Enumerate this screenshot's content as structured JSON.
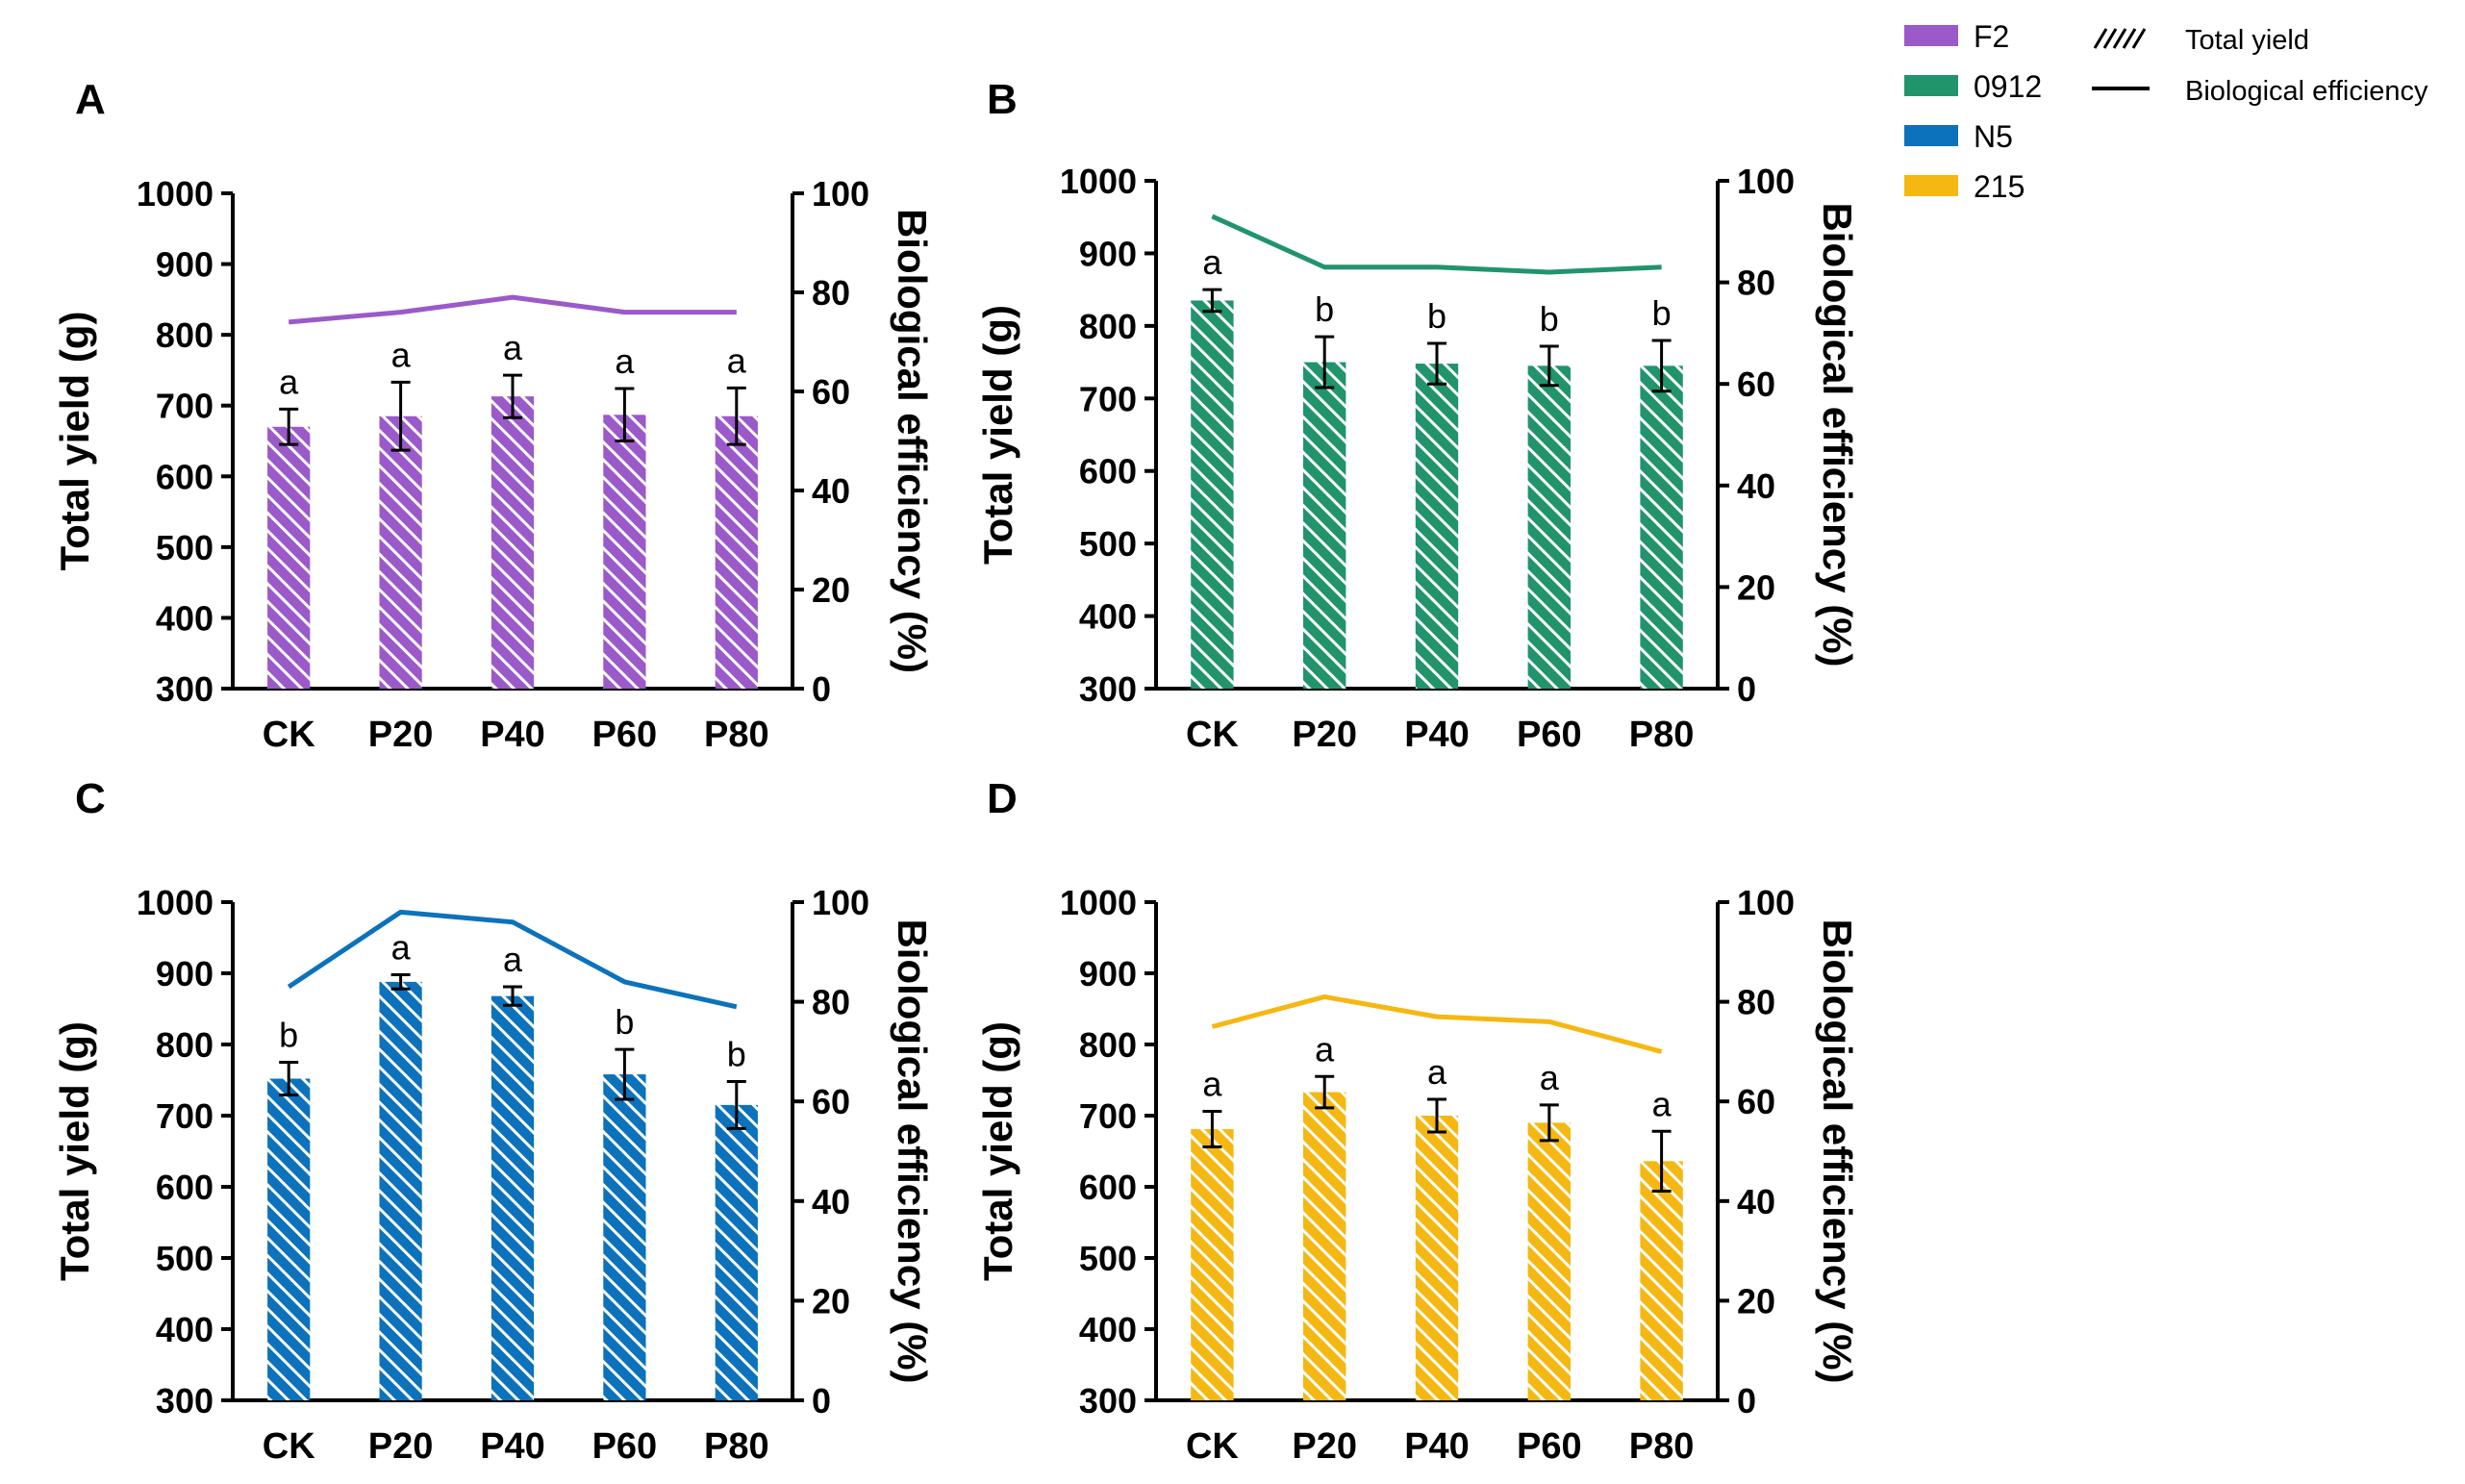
{
  "legend": {
    "strains": [
      {
        "label": "F2",
        "color": "#9b59c9"
      },
      {
        "label": "0912",
        "color": "#21946c"
      },
      {
        "label": "N5",
        "color": "#0c72bb"
      },
      {
        "label": "215",
        "color": "#f5b812"
      }
    ],
    "total_yield_label": "Total yield",
    "bio_eff_label": "Biological efficiency"
  },
  "chart_data": [
    {
      "panel": "A",
      "type": "bar",
      "strain": "F2",
      "color": "#9b59c9",
      "categories": [
        "CK",
        "P20",
        "P40",
        "P60",
        "P80"
      ],
      "ylabel": "Total yield (g)",
      "y2label": "Biological efficiency (%)",
      "ylim": [
        300,
        1000
      ],
      "yticks": [
        300,
        400,
        500,
        600,
        700,
        800,
        900,
        1000
      ],
      "y2lim": [
        0,
        100
      ],
      "y2ticks": [
        0,
        20,
        40,
        60,
        80,
        100
      ],
      "yield": [
        670,
        685,
        713,
        687,
        685
      ],
      "yield_err": [
        25,
        48,
        30,
        37,
        40
      ],
      "letters": [
        "a",
        "a",
        "a",
        "a",
        "a"
      ],
      "bio_efficiency": [
        74,
        76,
        79,
        76,
        76
      ]
    },
    {
      "panel": "B",
      "type": "bar",
      "strain": "0912",
      "color": "#21946c",
      "categories": [
        "CK",
        "P20",
        "P40",
        "P60",
        "P80"
      ],
      "ylabel": "Total yield (g)",
      "y2label": "Biological efficiency (%)",
      "ylim": [
        300,
        1000
      ],
      "yticks": [
        300,
        400,
        500,
        600,
        700,
        800,
        900,
        1000
      ],
      "y2lim": [
        0,
        100
      ],
      "y2ticks": [
        0,
        20,
        40,
        60,
        80,
        100
      ],
      "yield": [
        835,
        750,
        748,
        745,
        745
      ],
      "yield_err": [
        15,
        35,
        28,
        27,
        35
      ],
      "letters": [
        "a",
        "b",
        "b",
        "b",
        "b"
      ],
      "bio_efficiency": [
        93,
        83,
        83,
        82,
        83
      ]
    },
    {
      "panel": "C",
      "type": "bar",
      "strain": "N5",
      "color": "#0c72bb",
      "categories": [
        "CK",
        "P20",
        "P40",
        "P60",
        "P80"
      ],
      "ylabel": "Total yield (g)",
      "y2label": "Biological efficiency (%)",
      "ylim": [
        300,
        1000
      ],
      "yticks": [
        300,
        400,
        500,
        600,
        700,
        800,
        900,
        1000
      ],
      "y2lim": [
        0,
        100
      ],
      "y2ticks": [
        0,
        20,
        40,
        60,
        80,
        100
      ],
      "yield": [
        752,
        888,
        868,
        758,
        715
      ],
      "yield_err": [
        23,
        10,
        13,
        35,
        33
      ],
      "letters": [
        "b",
        "a",
        "a",
        "b",
        "b"
      ],
      "bio_efficiency": [
        83,
        98,
        96,
        84,
        79
      ]
    },
    {
      "panel": "D",
      "type": "bar",
      "strain": "215",
      "color": "#f5b812",
      "categories": [
        "CK",
        "P20",
        "P40",
        "P60",
        "P80"
      ],
      "ylabel": "Total yield (g)",
      "y2label": "Biological efficiency (%)",
      "ylim": [
        300,
        1000
      ],
      "yticks": [
        300,
        400,
        500,
        600,
        700,
        800,
        900,
        1000
      ],
      "y2lim": [
        0,
        100
      ],
      "y2ticks": [
        0,
        20,
        40,
        60,
        80,
        100
      ],
      "yield": [
        681,
        733,
        700,
        690,
        636
      ],
      "yield_err": [
        25,
        22,
        23,
        25,
        42
      ],
      "letters": [
        "a",
        "a",
        "a",
        "a",
        "a"
      ],
      "bio_efficiency": [
        75,
        81,
        77,
        76,
        70
      ]
    }
  ]
}
